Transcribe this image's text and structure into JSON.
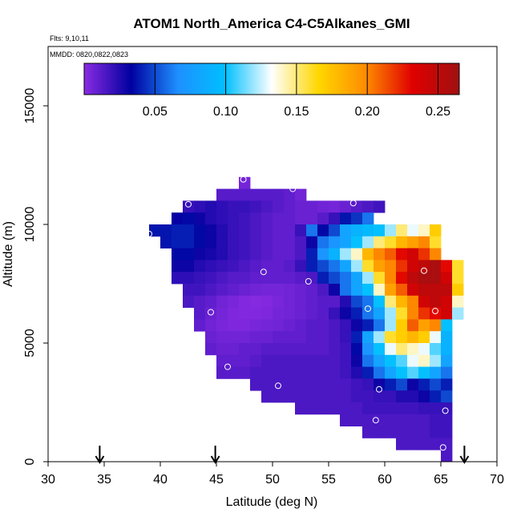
{
  "chart_data": {
    "type": "heatmap",
    "title": "ATOM1 North_America C4-C5Alkanes_GMI",
    "subtitle_flights": "Flts: 9,10,11",
    "subtitle_dates": "MMDD: 0820,0822,0823",
    "xlabel": "Latitude (deg N)",
    "ylabel": "Altitude (m)",
    "xlim": [
      30,
      70
    ],
    "ylim": [
      0,
      17500
    ],
    "x_ticks": [
      "30",
      "35",
      "40",
      "45",
      "50",
      "55",
      "60",
      "65",
      "70"
    ],
    "y_ticks": [
      "0",
      "5000",
      "10000",
      "15000"
    ],
    "colorbar": {
      "range": [
        0.0,
        0.265
      ],
      "tick_values": [
        0.05,
        0.1,
        0.15,
        0.2,
        0.25
      ],
      "tick_labels": [
        "0.05",
        "0.10",
        "0.15",
        "0.20",
        "0.25"
      ],
      "colors": [
        "#8a2be2",
        "#0000a0",
        "#1e90ff",
        "#00bfff",
        "#ffffff",
        "#ffd700",
        "#ff8c00",
        "#e00000",
        "#a01010"
      ]
    },
    "cell_size_deg": 1.0,
    "cell_size_m": 500,
    "rows": [
      {
        "alt": 11750,
        "lat0": 47,
        "values": [
          0.005
        ]
      },
      {
        "alt": 11250,
        "lat0": 45,
        "values": [
          0.012,
          0.012,
          0.012,
          0.012,
          0.012,
          0.012,
          0.01,
          0.006
        ]
      },
      {
        "alt": 10750,
        "lat0": 42,
        "values": [
          0.02,
          0.022,
          0.025,
          0.022,
          0.02,
          0.02,
          0.018,
          0.015,
          0.012,
          0.01,
          0.008,
          0.008,
          0.006,
          0.005,
          0.008,
          0.012,
          0.015,
          0.018
        ]
      },
      {
        "alt": 10250,
        "lat0": 41,
        "values": [
          0.032,
          0.035,
          0.03,
          0.025,
          0.022,
          0.02,
          0.018,
          0.015,
          0.012,
          0.01,
          0.01,
          0.008,
          0.008,
          0.012,
          0.02,
          0.038,
          0.045,
          0.06
        ]
      },
      {
        "alt": 9750,
        "lat0": 39,
        "values": [
          0.038,
          0.038,
          0.04,
          0.04,
          0.035,
          0.03,
          0.025,
          0.02,
          0.018,
          0.015,
          0.012,
          0.01,
          0.01,
          0.02,
          0.06,
          0.035,
          0.05,
          0.08,
          0.09,
          0.095,
          0.1,
          0.12,
          0.15,
          0.13,
          0.14,
          0.17
        ]
      },
      {
        "alt": 9250,
        "lat0": 40,
        "values": [
          0.038,
          0.04,
          0.04,
          0.035,
          0.03,
          0.025,
          0.02,
          0.018,
          0.015,
          0.012,
          0.01,
          0.01,
          0.015,
          0.03,
          0.06,
          0.07,
          0.08,
          0.1,
          0.12,
          0.15,
          0.16,
          0.18,
          0.19,
          0.2,
          0.16
        ]
      },
      {
        "alt": 8750,
        "lat0": 41,
        "values": [
          0.035,
          0.035,
          0.03,
          0.028,
          0.025,
          0.02,
          0.018,
          0.015,
          0.012,
          0.01,
          0.01,
          0.015,
          0.04,
          0.07,
          0.09,
          0.12,
          0.14,
          0.18,
          0.2,
          0.21,
          0.23,
          0.24,
          0.22,
          0.2
        ]
      },
      {
        "alt": 8250,
        "lat0": 41,
        "values": [
          0.03,
          0.03,
          0.025,
          0.022,
          0.02,
          0.018,
          0.015,
          0.012,
          0.01,
          0.01,
          0.012,
          0.02,
          0.04,
          0.05,
          0.06,
          0.08,
          0.12,
          0.16,
          0.19,
          0.2,
          0.22,
          0.24,
          0.25,
          0.26,
          0.23,
          0.16
        ]
      },
      {
        "alt": 7750,
        "lat0": 41,
        "values": [
          0.022,
          0.022,
          0.02,
          0.018,
          0.015,
          0.012,
          0.012,
          0.01,
          0.01,
          0.01,
          0.01,
          0.012,
          0.015,
          0.04,
          0.05,
          0.06,
          0.08,
          0.12,
          0.16,
          0.2,
          0.23,
          0.25,
          0.26,
          0.26,
          0.24,
          0.16
        ]
      },
      {
        "alt": 7250,
        "lat0": 42,
        "values": [
          0.018,
          0.018,
          0.015,
          0.012,
          0.01,
          0.008,
          0.006,
          0.005,
          0.005,
          0.006,
          0.008,
          0.01,
          0.015,
          0.03,
          0.06,
          0.08,
          0.1,
          0.14,
          0.19,
          0.21,
          0.24,
          0.25,
          0.25,
          0.25,
          0.17
        ]
      },
      {
        "alt": 6750,
        "lat0": 42,
        "values": [
          0.015,
          0.012,
          0.01,
          0.006,
          0.004,
          0.002,
          0.001,
          0.002,
          0.004,
          0.006,
          0.008,
          0.01,
          0.012,
          0.012,
          0.025,
          0.05,
          0.06,
          0.1,
          0.15,
          0.18,
          0.2,
          0.24,
          0.25,
          0.24,
          0.14
        ]
      },
      {
        "alt": 6250,
        "lat0": 43,
        "values": [
          0.012,
          0.008,
          0.005,
          0.003,
          0.002,
          0.002,
          0.003,
          0.005,
          0.006,
          0.008,
          0.01,
          0.012,
          0.02,
          0.03,
          0.04,
          0.06,
          0.08,
          0.12,
          0.16,
          0.2,
          0.22,
          0.23,
          0.24,
          0.12
        ]
      },
      {
        "alt": 5750,
        "lat0": 43,
        "values": [
          0.01,
          0.006,
          0.004,
          0.003,
          0.003,
          0.004,
          0.005,
          0.006,
          0.008,
          0.01,
          0.012,
          0.012,
          0.015,
          0.02,
          0.03,
          0.04,
          0.06,
          0.12,
          0.17,
          0.21,
          0.19,
          0.2,
          0.1
        ]
      },
      {
        "alt": 5250,
        "lat0": 44,
        "values": [
          0.008,
          0.006,
          0.006,
          0.006,
          0.008,
          0.008,
          0.01,
          0.01,
          0.01,
          0.012,
          0.012,
          0.015,
          0.02,
          0.04,
          0.08,
          0.12,
          0.16,
          0.17,
          0.18,
          0.17,
          0.13,
          0.09
        ]
      },
      {
        "alt": 4750,
        "lat0": 44,
        "values": [
          0.01,
          0.008,
          0.008,
          0.01,
          0.01,
          0.012,
          0.012,
          0.012,
          0.012,
          0.012,
          0.012,
          0.015,
          0.018,
          0.035,
          0.07,
          0.1,
          0.13,
          0.15,
          0.14,
          0.13,
          0.11,
          0.09
        ]
      },
      {
        "alt": 4250,
        "lat0": 45,
        "values": [
          0.01,
          0.01,
          0.01,
          0.012,
          0.015,
          0.015,
          0.015,
          0.015,
          0.015,
          0.015,
          0.015,
          0.018,
          0.03,
          0.06,
          0.08,
          0.1,
          0.11,
          0.13,
          0.14,
          0.12,
          0.08
        ]
      },
      {
        "alt": 3750,
        "lat0": 45,
        "values": [
          0.012,
          0.012,
          0.012,
          0.015,
          0.015,
          0.015,
          0.015,
          0.015,
          0.015,
          0.015,
          0.015,
          0.018,
          0.025,
          0.04,
          0.06,
          0.08,
          0.1,
          0.11,
          0.1,
          0.08,
          0.06
        ]
      },
      {
        "alt": 3250,
        "lat0": 48,
        "values": [
          0.015,
          0.015,
          0.015,
          0.015,
          0.015,
          0.015,
          0.015,
          0.015,
          0.015,
          0.018,
          0.02,
          0.03,
          0.04,
          0.05,
          0.03,
          0.04,
          0.05,
          0.04
        ]
      },
      {
        "alt": 2750,
        "lat0": 49,
        "values": [
          0.015,
          0.015,
          0.015,
          0.015,
          0.015,
          0.015,
          0.015,
          0.015,
          0.018,
          0.018,
          0.02,
          0.02,
          0.025,
          0.025,
          0.03,
          0.04,
          0.05
        ]
      },
      {
        "alt": 2250,
        "lat0": 52,
        "values": [
          0.015,
          0.015,
          0.015,
          0.015,
          0.015,
          0.015,
          0.018,
          0.018,
          0.018,
          0.018,
          0.018,
          0.02,
          0.02,
          0.02
        ]
      },
      {
        "alt": 1750,
        "lat0": 56,
        "values": [
          0.015,
          0.015,
          0.015,
          0.015,
          0.015,
          0.015,
          0.015,
          0.015,
          0.018,
          0.018
        ]
      },
      {
        "alt": 1250,
        "lat0": 58,
        "values": [
          0.015,
          0.015,
          0.015,
          0.015,
          0.015,
          0.015,
          0.018,
          0.018
        ]
      },
      {
        "alt": 750,
        "lat0": 61,
        "values": [
          0.015,
          0.015,
          0.015,
          0.015,
          0.015
        ]
      },
      {
        "alt": 250,
        "lat0": 65,
        "values": [
          0.015
        ]
      }
    ],
    "flight_points": [
      {
        "lat": 47.4,
        "alt": 11900
      },
      {
        "lat": 51.8,
        "alt": 11500
      },
      {
        "lat": 42.5,
        "alt": 10850
      },
      {
        "lat": 57.2,
        "alt": 10900
      },
      {
        "lat": 39.0,
        "alt": 9600
      },
      {
        "lat": 49.2,
        "alt": 8000
      },
      {
        "lat": 53.2,
        "alt": 7600
      },
      {
        "lat": 63.5,
        "alt": 8050
      },
      {
        "lat": 44.5,
        "alt": 6300
      },
      {
        "lat": 58.5,
        "alt": 6450
      },
      {
        "lat": 64.5,
        "alt": 6350
      },
      {
        "lat": 46.0,
        "alt": 4000
      },
      {
        "lat": 50.5,
        "alt": 3200
      },
      {
        "lat": 59.5,
        "alt": 3050
      },
      {
        "lat": 59.2,
        "alt": 1750
      },
      {
        "lat": 65.4,
        "alt": 2150
      },
      {
        "lat": 65.2,
        "alt": 600
      }
    ],
    "arrow_latitudes": [
      34.6,
      44.9,
      67.1
    ]
  }
}
